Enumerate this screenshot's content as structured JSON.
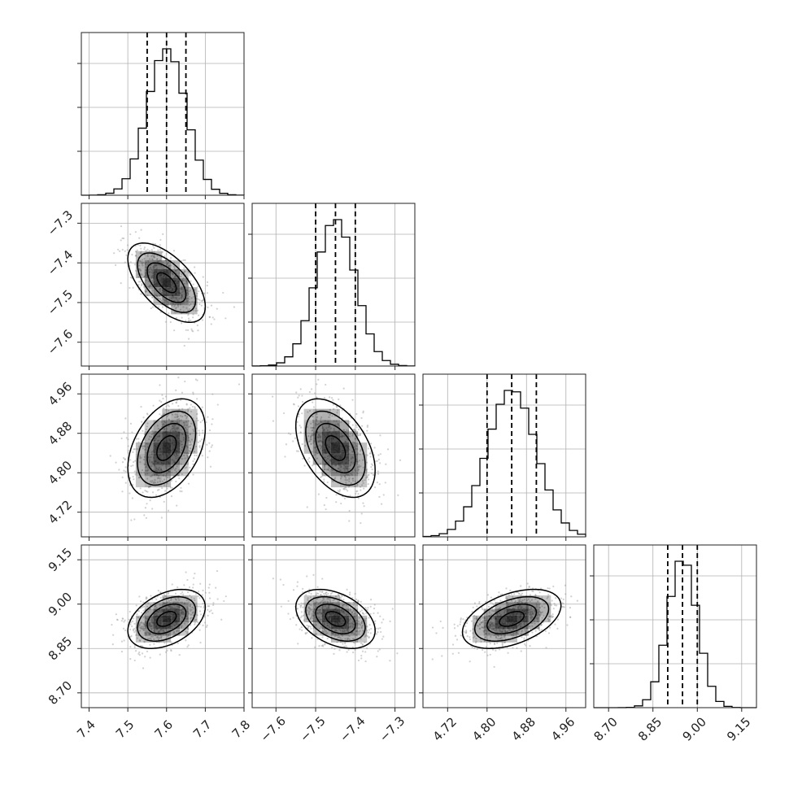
{
  "chart_data": {
    "type": "corner",
    "parameters": [
      {
        "mean": 7.6,
        "sd": 0.05,
        "quantiles": [
          7.55,
          7.6,
          7.65
        ],
        "range": [
          7.38,
          7.8
        ],
        "ticks": [
          7.4,
          7.5,
          7.6,
          7.7,
          7.8
        ],
        "tick_labels": [
          "7.4",
          "7.5",
          "7.6",
          "7.7",
          "7.8"
        ]
      },
      {
        "mean": -7.45,
        "sd": 0.05,
        "quantiles": [
          -7.5,
          -7.45,
          -7.4
        ],
        "range": [
          -7.66,
          -7.25
        ],
        "ticks": [
          -7.6,
          -7.5,
          -7.4,
          -7.3
        ],
        "tick_labels": [
          "−7.6",
          "−7.5",
          "−7.4",
          "−7.3"
        ]
      },
      {
        "mean": 4.85,
        "sd": 0.05,
        "quantiles": [
          4.8,
          4.85,
          4.9
        ],
        "range": [
          4.67,
          5.0
        ],
        "ticks": [
          4.72,
          4.8,
          4.88,
          4.96
        ],
        "tick_labels": [
          "4.72",
          "4.80",
          "4.88",
          "4.96"
        ]
      },
      {
        "mean": 8.95,
        "sd": 0.05,
        "quantiles": [
          8.9,
          8.95,
          9.0
        ],
        "range": [
          8.65,
          9.2
        ],
        "ticks": [
          8.7,
          8.85,
          9.0,
          9.15
        ],
        "tick_labels": [
          "8.70",
          "8.85",
          "9.00",
          "9.15"
        ]
      }
    ],
    "correlations": [
      [
        1.0,
        -0.6,
        0.4,
        0.4
      ],
      [
        -0.6,
        1.0,
        -0.45,
        -0.4
      ],
      [
        0.4,
        -0.45,
        1.0,
        0.45
      ],
      [
        0.4,
        -0.4,
        0.45,
        1.0
      ]
    ],
    "histogram_bins": 20,
    "contour_sigma_levels": [
      0.5,
      1.0,
      1.5,
      2.0
    ],
    "grid": true,
    "colors": {
      "hist": "#000000",
      "points": "#9a9a9a",
      "density": "#000000",
      "grid": "#b0b0b0"
    }
  }
}
